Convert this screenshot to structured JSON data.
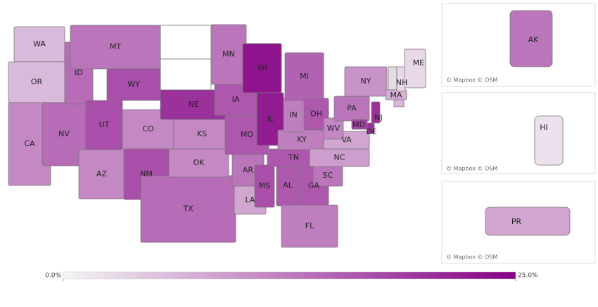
{
  "chart_data": {
    "type": "choropleth",
    "regions": [
      {
        "name": "WA",
        "value": 6
      },
      {
        "name": "OR",
        "value": 6
      },
      {
        "name": "CA",
        "value": 11
      },
      {
        "name": "NV",
        "value": 14
      },
      {
        "name": "ID",
        "value": 14
      },
      {
        "name": "MT",
        "value": 13
      },
      {
        "name": "WY",
        "value": 17
      },
      {
        "name": "UT",
        "value": 17
      },
      {
        "name": "AZ",
        "value": 11
      },
      {
        "name": "CO",
        "value": 11
      },
      {
        "name": "NM",
        "value": 17
      },
      {
        "name": "TX",
        "value": 14
      },
      {
        "name": "OK",
        "value": 11
      },
      {
        "name": "KS",
        "value": 11
      },
      {
        "name": "NE",
        "value": 20
      },
      {
        "name": "MN",
        "value": 13
      },
      {
        "name": "IA",
        "value": 16
      },
      {
        "name": "MO",
        "value": 16
      },
      {
        "name": "AR",
        "value": 13
      },
      {
        "name": "LA",
        "value": 8
      },
      {
        "name": "WI",
        "value": 23
      },
      {
        "name": "IL",
        "value": 22
      },
      {
        "name": "MS",
        "value": 17
      },
      {
        "name": "AL",
        "value": 16
      },
      {
        "name": "TN",
        "value": 16
      },
      {
        "name": "KY",
        "value": 12
      },
      {
        "name": "IN",
        "value": 12
      },
      {
        "name": "MI",
        "value": 15
      },
      {
        "name": "OH",
        "value": 16
      },
      {
        "name": "GA",
        "value": 16
      },
      {
        "name": "FL",
        "value": 12
      },
      {
        "name": "SC",
        "value": 13
      },
      {
        "name": "NC",
        "value": 9
      },
      {
        "name": "VA",
        "value": 8
      },
      {
        "name": "WV",
        "value": 11
      },
      {
        "name": "PA",
        "value": 13
      },
      {
        "name": "NY",
        "value": 10
      },
      {
        "name": "NJ",
        "value": 20
      },
      {
        "name": "DE",
        "value": 20
      },
      {
        "name": "MD",
        "value": 18
      },
      {
        "name": "MA",
        "value": 7
      },
      {
        "name": "NH",
        "value": 3
      },
      {
        "name": "ME",
        "value": 3
      },
      {
        "name": "AK",
        "value": 13
      },
      {
        "name": "HI",
        "value": 2
      },
      {
        "name": "PR",
        "value": 8
      }
    ],
    "attributions": [
      "© Mapbox © OSM",
      "© Mapbox © OSM",
      "© Mapbox © OSM"
    ],
    "colormap": [
      "#f5f5f5",
      "#850085"
    ],
    "range": [
      0,
      25
    ],
    "colorbar_ticks": [
      {
        "value": 0,
        "label": "0.0%"
      },
      {
        "value": 25,
        "label": "25.0%"
      }
    ]
  }
}
